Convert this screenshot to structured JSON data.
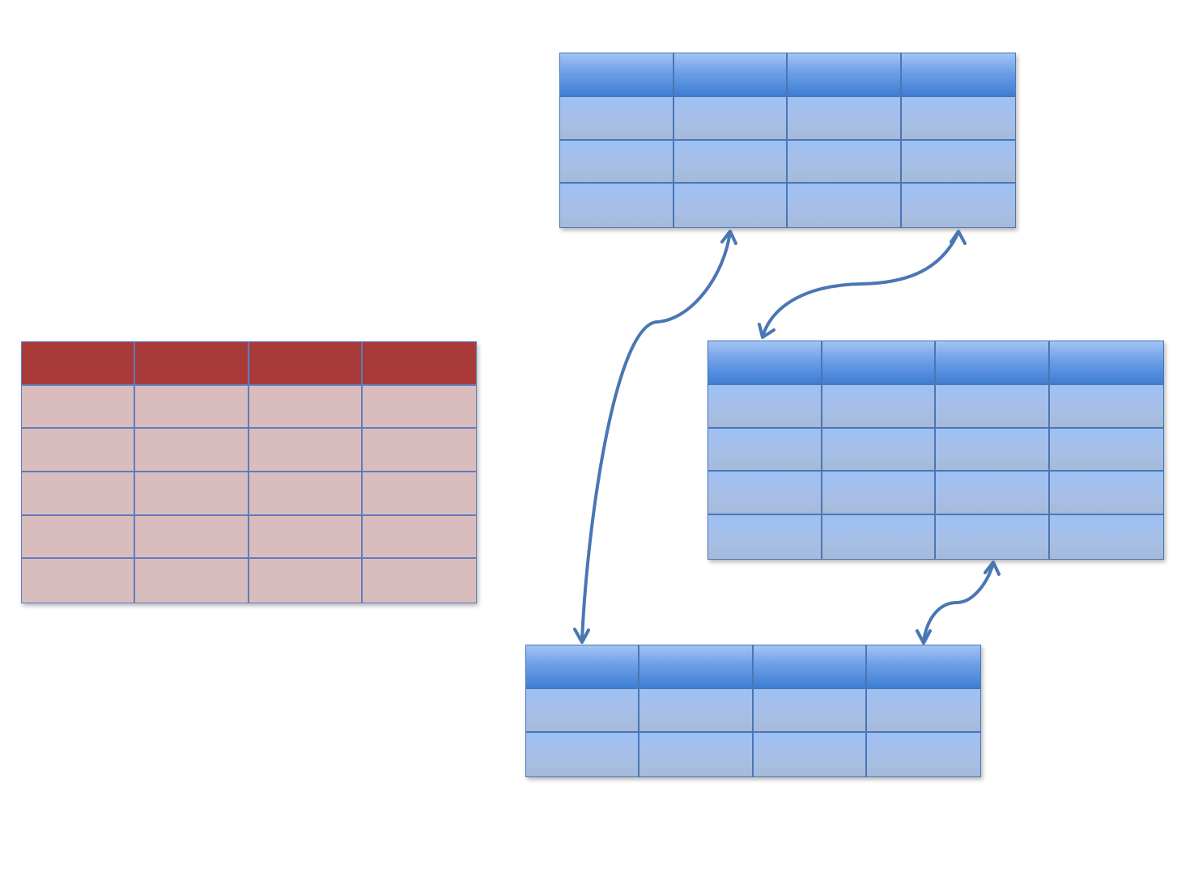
{
  "colors": {
    "blue_table_border": "#4a76b4",
    "blue_header": "#4f86d9",
    "blue_body": "#a6c0e8",
    "red_header": "#a93a3a",
    "red_body": "#d9bdbe",
    "connector": "#4a76b4"
  },
  "tables": {
    "left_red": {
      "color": "red",
      "columns": 4,
      "rows": [
        "",
        "",
        "",
        "",
        ""
      ],
      "header": [
        "",
        "",
        "",
        ""
      ]
    },
    "top_blue": {
      "color": "blue",
      "columns": 4,
      "rows": [
        "",
        "",
        ""
      ],
      "header": [
        "",
        "",
        "",
        ""
      ]
    },
    "middle_blue": {
      "color": "blue",
      "columns": 4,
      "rows": [
        "",
        "",
        "",
        ""
      ],
      "header": [
        "",
        "",
        "",
        ""
      ]
    },
    "bottom_blue": {
      "color": "blue",
      "columns": 4,
      "rows": [
        "",
        ""
      ],
      "header": [
        "",
        "",
        "",
        ""
      ]
    }
  },
  "connectors": [
    {
      "from": "top_blue",
      "to": "bottom_blue",
      "arrows": "both"
    },
    {
      "from": "top_blue",
      "to": "middle_blue",
      "arrows": "both"
    },
    {
      "from": "middle_blue",
      "to": "bottom_blue",
      "arrows": "both"
    }
  ]
}
